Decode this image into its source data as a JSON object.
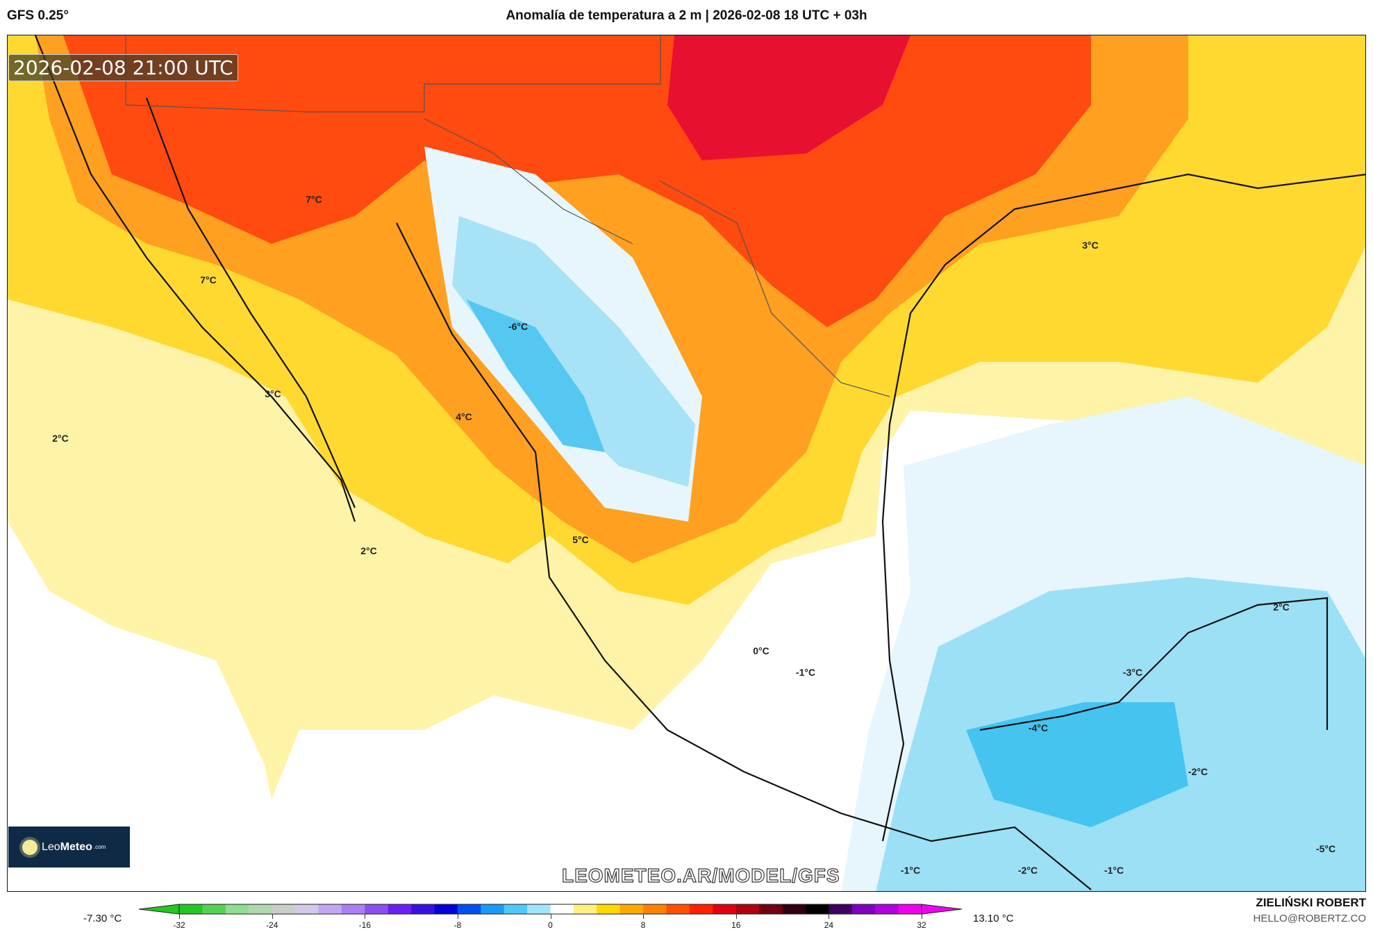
{
  "header": {
    "model": "GFS 0.25°",
    "title": "Anomalía de temperatura a 2 m | 2026-02-08 18 UTC + 03h"
  },
  "map": {
    "timestamp": "2026-02-08 21:00 UTC",
    "labels": [
      {
        "text": "7°C"
      },
      {
        "text": "7°C"
      },
      {
        "text": "3°C"
      },
      {
        "text": "2°C"
      },
      {
        "text": "4°C"
      },
      {
        "text": "-6°C"
      },
      {
        "text": "5°C"
      },
      {
        "text": "2°C"
      },
      {
        "text": "3°C"
      },
      {
        "text": "0°C"
      },
      {
        "text": "-1°C"
      },
      {
        "text": "-3°C"
      },
      {
        "text": "2°C"
      },
      {
        "text": "-4°C"
      },
      {
        "text": "-2°C"
      },
      {
        "text": "-1°C"
      },
      {
        "text": "-2°C"
      },
      {
        "text": "-1°C"
      },
      {
        "text": "-5°C"
      }
    ],
    "watermark": "LEOMETEO.AR/MODEL/GFS",
    "logo": {
      "name": "LeoMeteo",
      "part1": "Leo",
      "part2": "Meteo",
      "suffix": ".com"
    }
  },
  "colorbar": {
    "min_label": "-7.30 °C",
    "max_label": "13.10 °C",
    "ticks": [
      "-32",
      "-24",
      "-16",
      "-8",
      "0",
      "8",
      "16",
      "24",
      "32"
    ],
    "colors": [
      "#22c722",
      "#55d055",
      "#90dc90",
      "#b0d8b0",
      "#c8cfc8",
      "#d4c8e8",
      "#c0a8f0",
      "#a880f0",
      "#8a50f0",
      "#6a20f0",
      "#3a10e0",
      "#0000d8",
      "#0050f0",
      "#1a9af8",
      "#50c8f8",
      "#a0e4f8",
      "#ffffff",
      "#fff080",
      "#ffd800",
      "#ffa800",
      "#ff8000",
      "#ff5000",
      "#ff2000",
      "#e00010",
      "#b00010",
      "#700010",
      "#300010",
      "#000000",
      "#400060",
      "#8000c0",
      "#b000e0",
      "#f000f0"
    ]
  },
  "footer": {
    "author": "ZIELIŃSKI ROBERT",
    "email": "HELLO@ROBERTZ.CO"
  }
}
